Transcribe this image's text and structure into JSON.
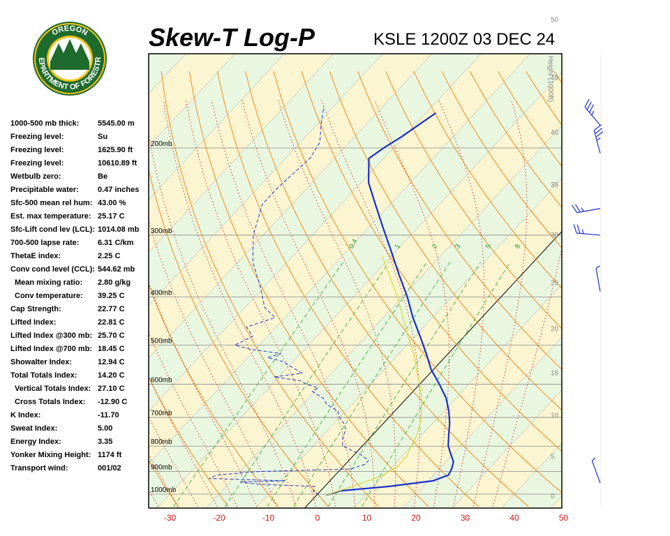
{
  "header": {
    "title": "Skew-T Log-P",
    "station": "KSLE 1200Z 03 DEC 24"
  },
  "logo": {
    "top_text": "OREGON",
    "bottom_text": "DEPARTMENT OF FORESTRY",
    "ring_color": "#1f6b2e",
    "gold_color": "#f2c418"
  },
  "indices": [
    {
      "label": "1000-500 mb thick:",
      "value": "5545.00 m"
    },
    {
      "label": "Freezing level:",
      "value": "Su"
    },
    {
      "label": "Freezing level:",
      "value": "1625.90 ft"
    },
    {
      "label": "Freezing level:",
      "value": "10610.89 ft"
    },
    {
      "label": "Wetbulb zero:",
      "value": "Be"
    },
    {
      "label": "Precipitable water:",
      "value": "0.47 inches"
    },
    {
      "label": "Sfc-500 mean rel hum:",
      "value": "43.00 %"
    },
    {
      "label": "Est. max temperature:",
      "value": "25.17 C"
    },
    {
      "label": "Sfc-Lift cond lev (LCL):",
      "value": "1014.08 mb"
    },
    {
      "label": "700-500 lapse rate:",
      "value": "6.31 C/km"
    },
    {
      "label": "ThetaE index:",
      "value": "2.25 C"
    },
    {
      "label": "Conv cond level (CCL):",
      "value": "544.62 mb"
    },
    {
      "label": "Mean mixing ratio:",
      "value": "2.80 g/kg",
      "indent": true
    },
    {
      "label": "Conv temperature:",
      "value": "39.25 C",
      "indent": true
    },
    {
      "label": "Cap Strength:",
      "value": "22.77 C"
    },
    {
      "label": "Lifted Index:",
      "value": "22.81 C"
    },
    {
      "label": "Lifted Index @300 mb:",
      "value": "25.70 C"
    },
    {
      "label": "Lifted Index @700 mb:",
      "value": "18.45 C"
    },
    {
      "label": "Showalter Index:",
      "value": "12.94 C"
    },
    {
      "label": "Total Totals Index:",
      "value": "14.20 C"
    },
    {
      "label": "Vertical Totals Index:",
      "value": "27.10 C",
      "indent": true
    },
    {
      "label": "Cross Totals Index:",
      "value": "-12.90 C",
      "indent": true
    },
    {
      "label": "K Index:",
      "value": "-11.70"
    },
    {
      "label": "Sweat Index:",
      "value": "5.00"
    },
    {
      "label": "Energy Index:",
      "value": "3.35"
    },
    {
      "label": "Yonker Mixing Height:",
      "value": "1174 ft"
    },
    {
      "label": "Transport wind:",
      "value": "001/02"
    }
  ],
  "chart_data": {
    "type": "line",
    "title": "Skew-T Log-P",
    "subtitle": "KSLE 1200Z 03 DEC 24",
    "x_ticks": [
      -30,
      -20,
      -10,
      0,
      10,
      20,
      30,
      40,
      50
    ],
    "xlim": [
      -30,
      50
    ],
    "pressure_labels": [
      "200mb",
      "300mb",
      "400mb",
      "500mb",
      "600mb",
      "700mb",
      "800mb",
      "900mb",
      "1000mb"
    ],
    "pressure_levels": [
      200,
      300,
      400,
      500,
      600,
      700,
      800,
      900,
      1000
    ],
    "ylim_mb": [
      1050,
      150
    ],
    "height_axis_label": "Height (1000ft)",
    "height_ticks": [
      0,
      5,
      10,
      15,
      20,
      25,
      30,
      35,
      40,
      45,
      50
    ],
    "mixing_ratio_labels": [
      "0.4",
      "1",
      "2",
      "3",
      "5",
      "8"
    ],
    "mixing_ratio_values": [
      0.4,
      1,
      2,
      3,
      5,
      8
    ],
    "series": [
      {
        "id": "temperature",
        "color": "#1a2ecc",
        "style": "solid",
        "points": [
          {
            "p": 1005,
            "t": 2.0
          },
          {
            "p": 985,
            "t": 4.0
          },
          {
            "p": 965,
            "t": 13.0
          },
          {
            "p": 940,
            "t": 21.0
          },
          {
            "p": 915,
            "t": 23.0
          },
          {
            "p": 890,
            "t": 22.5
          },
          {
            "p": 860,
            "t": 21.5
          },
          {
            "p": 830,
            "t": 19.5
          },
          {
            "p": 800,
            "t": 17.5
          },
          {
            "p": 760,
            "t": 15.5
          },
          {
            "p": 720,
            "t": 13.5
          },
          {
            "p": 680,
            "t": 11.0
          },
          {
            "p": 640,
            "t": 8.0
          },
          {
            "p": 600,
            "t": 4.0
          },
          {
            "p": 560,
            "t": -0.5
          },
          {
            "p": 520,
            "t": -4.5
          },
          {
            "p": 480,
            "t": -9.0
          },
          {
            "p": 440,
            "t": -14.0
          },
          {
            "p": 400,
            "t": -19.0
          },
          {
            "p": 360,
            "t": -25.0
          },
          {
            "p": 320,
            "t": -31.5
          },
          {
            "p": 290,
            "t": -37.0
          },
          {
            "p": 260,
            "t": -43.0
          },
          {
            "p": 235,
            "t": -48.5
          },
          {
            "p": 210,
            "t": -53.0
          },
          {
            "p": 200,
            "t": -52.0
          },
          {
            "p": 190,
            "t": -50.5
          },
          {
            "p": 170,
            "t": -48.0
          }
        ]
      },
      {
        "id": "dewpoint",
        "color": "#2233cc",
        "style": "dashed",
        "points": [
          {
            "p": 1005,
            "t": 0.5
          },
          {
            "p": 985,
            "t": -1.5
          },
          {
            "p": 965,
            "t": -2.0
          },
          {
            "p": 955,
            "t": -14.0
          },
          {
            "p": 945,
            "t": -18.0
          },
          {
            "p": 940,
            "t": -9.0
          },
          {
            "p": 930,
            "t": -25.0
          },
          {
            "p": 915,
            "t": -24.0
          },
          {
            "p": 900,
            "t": -16.0
          },
          {
            "p": 890,
            "t": 2.0
          },
          {
            "p": 870,
            "t": 4.0
          },
          {
            "p": 855,
            "t": 4.0
          },
          {
            "p": 830,
            "t": 1.0
          },
          {
            "p": 800,
            "t": -4.0
          },
          {
            "p": 770,
            "t": -5.5
          },
          {
            "p": 740,
            "t": -6.5
          },
          {
            "p": 720,
            "t": -8.0
          },
          {
            "p": 700,
            "t": -10.0
          },
          {
            "p": 680,
            "t": -11.5
          },
          {
            "p": 660,
            "t": -15.0
          },
          {
            "p": 640,
            "t": -17.0
          },
          {
            "p": 620,
            "t": -20.5
          },
          {
            "p": 610,
            "t": -20.0
          },
          {
            "p": 600,
            "t": -23.0
          },
          {
            "p": 590,
            "t": -25.0
          },
          {
            "p": 580,
            "t": -31.0
          },
          {
            "p": 570,
            "t": -26.0
          },
          {
            "p": 560,
            "t": -28.0
          },
          {
            "p": 550,
            "t": -30.0
          },
          {
            "p": 540,
            "t": -32.0
          },
          {
            "p": 530,
            "t": -36.0
          },
          {
            "p": 520,
            "t": -34.0
          },
          {
            "p": 510,
            "t": -41.0
          },
          {
            "p": 500,
            "t": -45.0
          },
          {
            "p": 480,
            "t": -43.0
          },
          {
            "p": 460,
            "t": -46.0
          },
          {
            "p": 440,
            "t": -42.0
          },
          {
            "p": 420,
            "t": -46.0
          },
          {
            "p": 380,
            "t": -51.0
          },
          {
            "p": 340,
            "t": -57.0
          },
          {
            "p": 300,
            "t": -62.0
          },
          {
            "p": 260,
            "t": -66.0
          },
          {
            "p": 240,
            "t": -66.0
          },
          {
            "p": 210,
            "t": -65.0
          },
          {
            "p": 195,
            "t": -66.0
          },
          {
            "p": 180,
            "t": -69.0
          },
          {
            "p": 165,
            "t": -72.0
          }
        ]
      },
      {
        "id": "parcel",
        "color": "#d8d830",
        "style": "solid",
        "points": [
          {
            "p": 1005,
            "t": 2.0
          },
          {
            "p": 960,
            "t": 6.0
          },
          {
            "p": 920,
            "t": 9.5
          },
          {
            "p": 880,
            "t": 11.0
          },
          {
            "p": 840,
            "t": 11.0
          },
          {
            "p": 800,
            "t": 10.0
          },
          {
            "p": 760,
            "t": 9.0
          },
          {
            "p": 720,
            "t": 7.5
          },
          {
            "p": 680,
            "t": 5.5
          },
          {
            "p": 640,
            "t": 3.0
          },
          {
            "p": 600,
            "t": 0.0
          },
          {
            "p": 560,
            "t": -3.5
          },
          {
            "p": 520,
            "t": -7.0
          },
          {
            "p": 480,
            "t": -11.5
          },
          {
            "p": 440,
            "t": -16.0
          },
          {
            "p": 400,
            "t": -21.0
          },
          {
            "p": 360,
            "t": -27.0
          },
          {
            "p": 330,
            "t": -32.0
          }
        ]
      }
    ],
    "wind_barbs": [
      {
        "p": 180,
        "dir": 320,
        "speed_kt": 35
      },
      {
        "p": 205,
        "dir": 345,
        "speed_kt": 35
      },
      {
        "p": 265,
        "dir": 260,
        "speed_kt": 25
      },
      {
        "p": 300,
        "dir": 275,
        "speed_kt": 25
      },
      {
        "p": 390,
        "dir": 350,
        "speed_kt": 5
      },
      {
        "p": 950,
        "dir": 340,
        "speed_kt": 5
      }
    ],
    "colors": {
      "background": "#ffffff",
      "chart_bg": "#eaf7e0",
      "isotherm": "#9a9a9a",
      "zero_isotherm": "#000000",
      "dry_adiabat": "#f08a1a",
      "moist_adiabat": "#d02020",
      "mixing_ratio": "#38b038",
      "warm_band": "#fbf5d2",
      "grid": "#888888"
    }
  }
}
